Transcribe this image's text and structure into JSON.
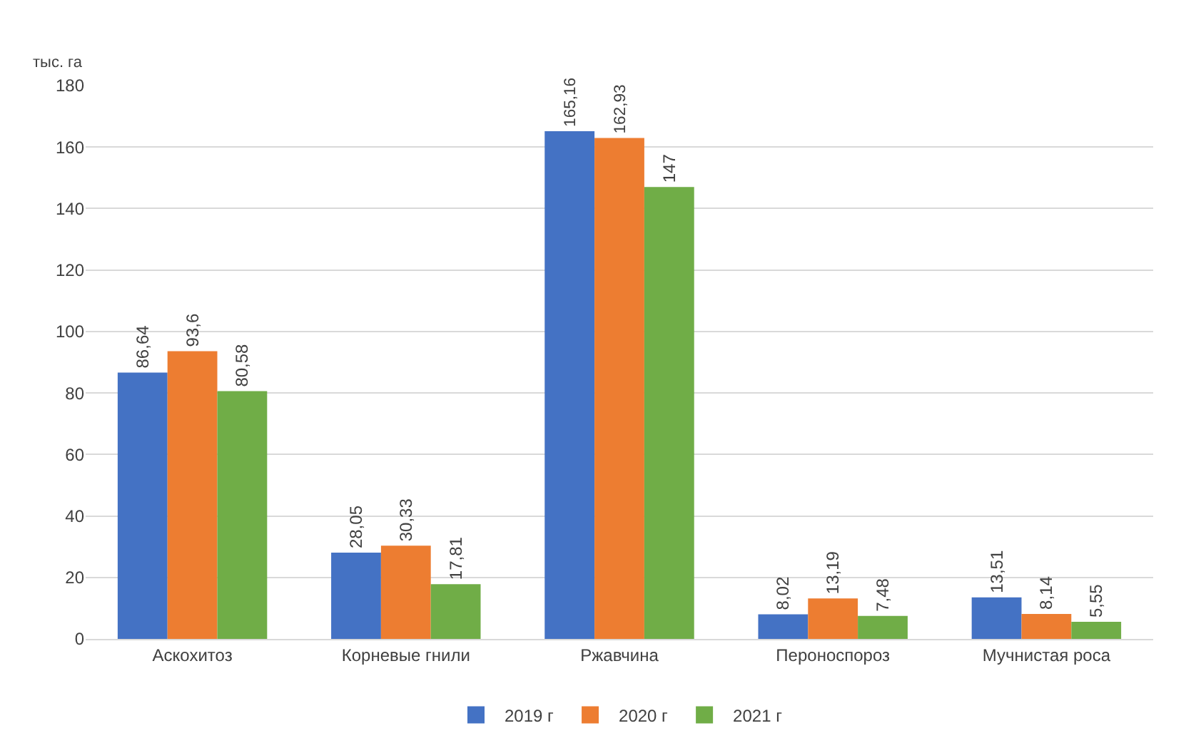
{
  "chart_data": {
    "type": "bar",
    "ylabel": "тыс. га",
    "categories": [
      "Аскохитоз",
      "Корневые гнили",
      "Ржавчина",
      "Пероноспороз",
      "Мучнистая роса"
    ],
    "series": [
      {
        "name": "2019 г",
        "color": "#4472c4",
        "values": [
          86.64,
          28.05,
          165.16,
          8.02,
          13.51
        ],
        "value_labels": [
          "86,64",
          "28,05",
          "165,16",
          "8,02",
          "13,51"
        ]
      },
      {
        "name": "2020 г",
        "color": "#ed7d31",
        "values": [
          93.6,
          30.33,
          162.93,
          13.19,
          8.14
        ],
        "value_labels": [
          "93,6",
          "30,33",
          "162,93",
          "13,19",
          "8,14"
        ]
      },
      {
        "name": "2021 г",
        "color": "#70ad47",
        "values": [
          80.58,
          17.81,
          147,
          7.48,
          5.55
        ],
        "value_labels": [
          "80,58",
          "17,81",
          "147",
          "7,48",
          "5,55"
        ]
      }
    ],
    "ylim": [
      0,
      180
    ],
    "yticks": [
      0,
      20,
      40,
      60,
      80,
      100,
      120,
      140,
      160,
      180
    ],
    "grid": "y",
    "legend": "bottom"
  }
}
